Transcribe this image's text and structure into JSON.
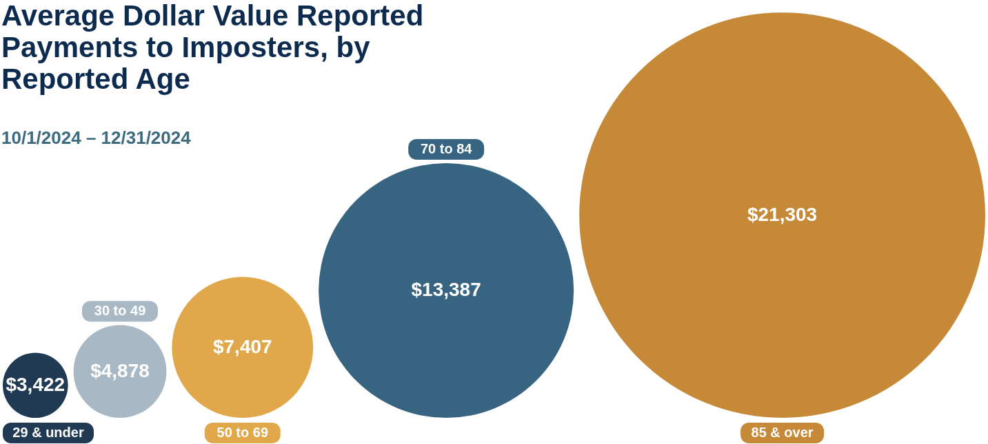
{
  "chart_data": {
    "type": "other",
    "title": "Average Dollar Value Reported Payments to Imposters, by Reported Age",
    "subtitle": "10/1/2024 – 12/31/2024",
    "categories": [
      "29 & under",
      "30 to 49",
      "50 to 69",
      "70 to 84",
      "85 & over"
    ],
    "values": [
      3422,
      4878,
      7407,
      13387,
      21303
    ],
    "value_labels": [
      "$3,422",
      "$4,878",
      "$7,407",
      "$13,387",
      "$21,303"
    ],
    "colors": [
      "#1f3a52",
      "#a8b8c5",
      "#e0a84a",
      "#376480",
      "#c58937"
    ]
  }
}
